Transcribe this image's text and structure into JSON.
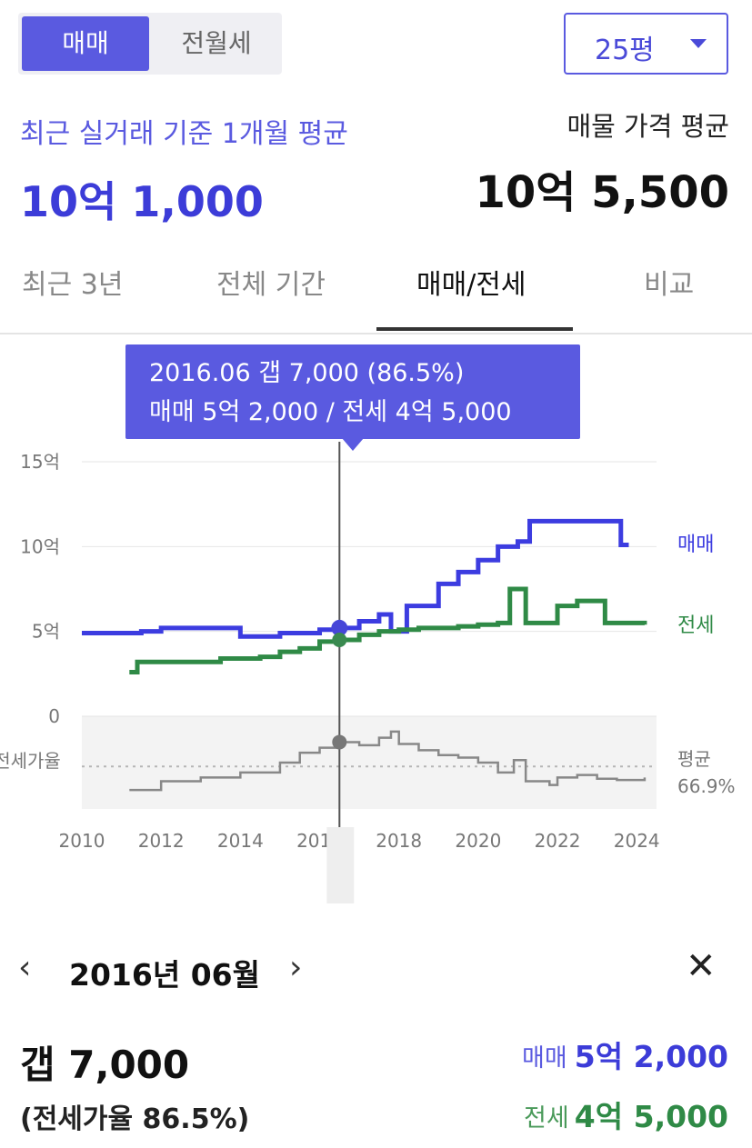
{
  "toggle": {
    "sale_label": "매매",
    "rent_label": "전월세"
  },
  "area_select": {
    "value": "25평"
  },
  "summary": {
    "recent_label": "최근 실거래 기준 1개월 평균",
    "recent_value": "10억 1,000",
    "listing_label": "매물 가격 평균",
    "listing_value": "10억 5,500"
  },
  "tabs": [
    {
      "label": "최근 3년"
    },
    {
      "label": "전체 기간"
    },
    {
      "label": "매매/전세",
      "active": true
    },
    {
      "label": "비교"
    }
  ],
  "tooltip": {
    "line1": "2016.06  갭 7,000 (86.5%)",
    "line2": "매매 5억 2,000 / 전세 4억 5,000"
  },
  "chart_data": {
    "type": "line",
    "y_ticks": [
      "15억",
      "10억",
      "5억",
      "0"
    ],
    "x_ticks": [
      "2010",
      "2012",
      "2014",
      "2016",
      "2018",
      "2020",
      "2022",
      "2024"
    ],
    "ylim": [
      0,
      15
    ],
    "ratio_axis_label": "전세가율",
    "avg_label": "평균",
    "avg_value": "66.9%",
    "series": [
      {
        "name": "매매",
        "color": "#3c3ce0",
        "points": [
          [
            2010.0,
            4.9
          ],
          [
            2011.5,
            5.0
          ],
          [
            2012.0,
            5.2
          ],
          [
            2013.0,
            5.2
          ],
          [
            2014.0,
            4.7
          ],
          [
            2015.0,
            4.9
          ],
          [
            2016.0,
            5.1
          ],
          [
            2016.5,
            5.2
          ],
          [
            2017.0,
            5.6
          ],
          [
            2017.5,
            6.0
          ],
          [
            2017.8,
            5.0
          ],
          [
            2018.2,
            6.5
          ],
          [
            2019.0,
            7.8
          ],
          [
            2019.5,
            8.5
          ],
          [
            2020.0,
            9.2
          ],
          [
            2020.5,
            10.0
          ],
          [
            2021.0,
            10.3
          ],
          [
            2021.3,
            11.5
          ],
          [
            2023.5,
            11.5
          ],
          [
            2023.6,
            10.1
          ],
          [
            2023.8,
            10.1
          ]
        ]
      },
      {
        "name": "전세",
        "color": "#2f8a46",
        "points": [
          [
            2011.2,
            2.6
          ],
          [
            2011.4,
            3.2
          ],
          [
            2012.5,
            3.2
          ],
          [
            2013.5,
            3.4
          ],
          [
            2014.5,
            3.5
          ],
          [
            2015.0,
            3.8
          ],
          [
            2015.5,
            4.0
          ],
          [
            2016.0,
            4.4
          ],
          [
            2016.5,
            4.5
          ],
          [
            2017.0,
            4.8
          ],
          [
            2017.5,
            5.0
          ],
          [
            2018.0,
            5.1
          ],
          [
            2018.5,
            5.2
          ],
          [
            2019.5,
            5.3
          ],
          [
            2020.0,
            5.4
          ],
          [
            2020.5,
            5.5
          ],
          [
            2020.8,
            7.5
          ],
          [
            2021.0,
            7.5
          ],
          [
            2021.2,
            5.5
          ],
          [
            2021.8,
            5.5
          ],
          [
            2022.0,
            6.5
          ],
          [
            2022.5,
            6.8
          ],
          [
            2023.0,
            6.8
          ],
          [
            2023.2,
            5.5
          ],
          [
            2024.2,
            5.4
          ]
        ]
      }
    ],
    "ratio_series": {
      "color": "#888888",
      "points": [
        [
          2011.2,
          48
        ],
        [
          2012.0,
          55
        ],
        [
          2013.0,
          58
        ],
        [
          2014.0,
          62
        ],
        [
          2015.0,
          70
        ],
        [
          2015.5,
          78
        ],
        [
          2016.0,
          82
        ],
        [
          2016.5,
          86.5
        ],
        [
          2017.0,
          84
        ],
        [
          2017.5,
          90
        ],
        [
          2017.8,
          95
        ],
        [
          2018.0,
          85
        ],
        [
          2018.5,
          80
        ],
        [
          2019.0,
          76
        ],
        [
          2019.5,
          74
        ],
        [
          2020.0,
          70
        ],
        [
          2020.5,
          62
        ],
        [
          2020.9,
          72
        ],
        [
          2021.2,
          55
        ],
        [
          2021.8,
          52
        ],
        [
          2022.0,
          58
        ],
        [
          2022.5,
          60
        ],
        [
          2023.0,
          57
        ],
        [
          2023.5,
          56
        ],
        [
          2024.2,
          58
        ]
      ]
    },
    "selected": {
      "x": 2016.5,
      "sale": 5.2,
      "jeonse": 4.5,
      "ratio": 86.5
    }
  },
  "detail": {
    "month": "2016년 06월",
    "gap": "갭 7,000",
    "ratio": "(전세가율 86.5%)",
    "sale_label": "매매",
    "sale_value": "5억 2,000",
    "jeonse_label": "전세",
    "jeonse_value": "4억 5,000"
  }
}
